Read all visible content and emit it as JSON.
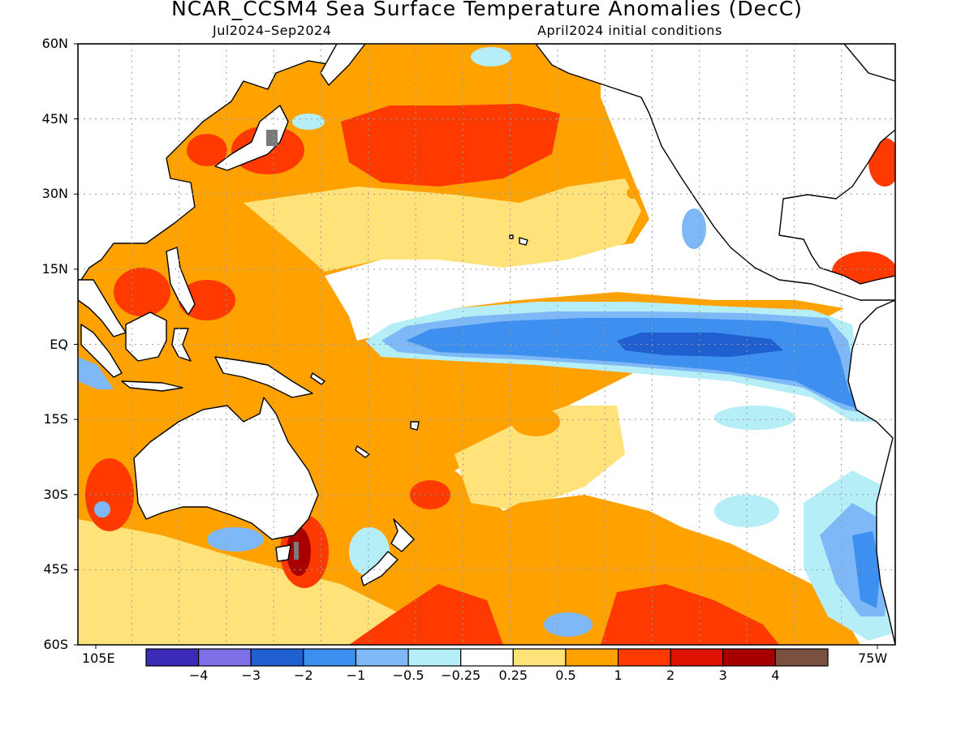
{
  "title": "NCAR_CCSM4 Sea Surface Temperature Anomalies (DecC)",
  "subtitle_left": "Jul2024–Sep2024",
  "subtitle_right": "April2024 initial conditions",
  "lat_labels": [
    "60N",
    "45N",
    "30N",
    "15N",
    "EQ",
    "15S",
    "30S",
    "45S",
    "60S"
  ],
  "lon_labels": [
    "105E",
    "75W"
  ],
  "colorbar": {
    "colors": [
      "#3a2cb8",
      "#7d70e8",
      "#1f5fd0",
      "#3d8ff0",
      "#7fb8f6",
      "#b5eef7",
      "#ffffff",
      "#ffe27a",
      "#ffa200",
      "#ff3a00",
      "#de1200",
      "#a80000",
      "#7a5040"
    ],
    "labels": [
      "−4",
      "−3",
      "−2",
      "−1",
      "−0.5",
      "−0.25",
      "0.25",
      "0.5",
      "1",
      "2",
      "3",
      "4"
    ]
  },
  "colors": {
    "land": "#ffffff",
    "coastline": "#000000",
    "grid": "#9a9a9a"
  }
}
